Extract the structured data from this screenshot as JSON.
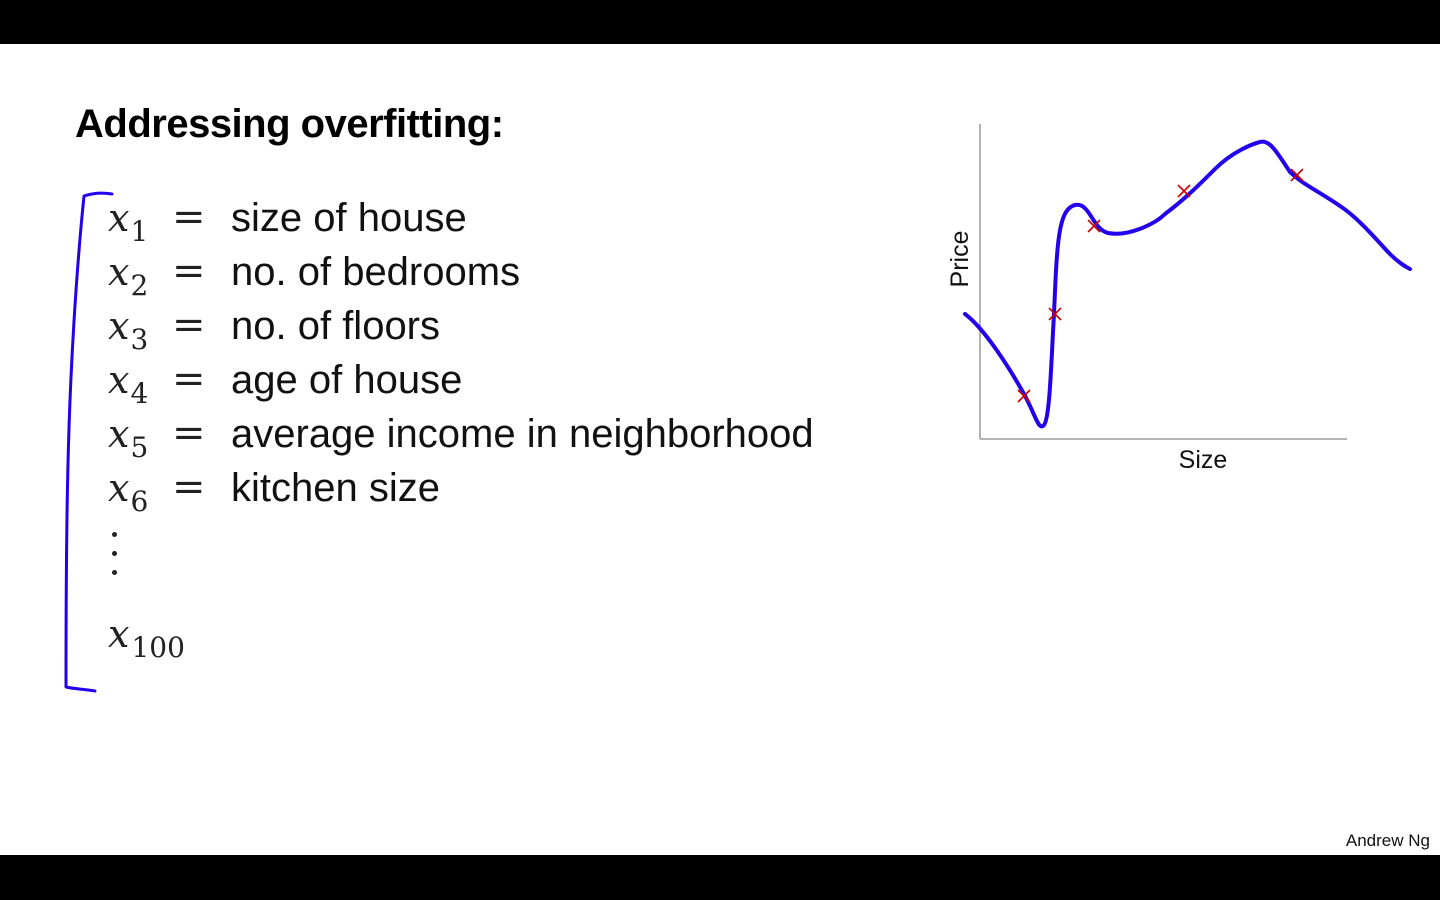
{
  "slide": {
    "title": "Addressing overfitting:",
    "credit": "Andrew Ng"
  },
  "features": [
    {
      "var": "x",
      "sub": "1",
      "eq": "=",
      "desc": "size of house"
    },
    {
      "var": "x",
      "sub": "2",
      "eq": "=",
      "desc": "no. of bedrooms"
    },
    {
      "var": "x",
      "sub": "3",
      "eq": "=",
      "desc": "no. of floors"
    },
    {
      "var": "x",
      "sub": "4",
      "eq": "=",
      "desc": "age of house"
    },
    {
      "var": "x",
      "sub": "5",
      "eq": "=",
      "desc": "average income in neighborhood"
    },
    {
      "var": "x",
      "sub": "6",
      "eq": "=",
      "desc": "kitchen size"
    }
  ],
  "last_feature": {
    "var": "x",
    "sub": "100"
  },
  "annotation_color": "#2200ee",
  "chart_data": {
    "type": "scatter",
    "xlabel": "Size",
    "ylabel": "Price",
    "point_color": "#cc0000",
    "curve_color": "#2200ee",
    "grid": false
  }
}
